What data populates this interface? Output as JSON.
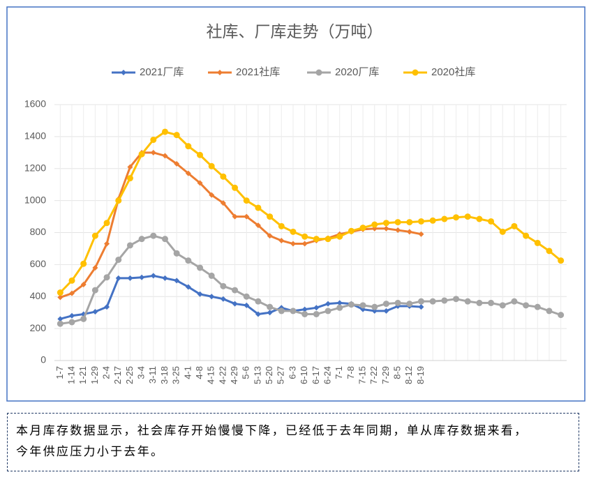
{
  "chart_data": {
    "type": "line",
    "title": "社库、厂库走势（万吨）",
    "categories": [
      "1-7",
      "1-14",
      "1-21",
      "1-29",
      "2-4",
      "2-17",
      "2-25",
      "3-4",
      "3-11",
      "3-18",
      "3-25",
      "4-1",
      "4-8",
      "4-15",
      "4-22",
      "4-29",
      "5-6",
      "5-13",
      "5-20",
      "5-27",
      "6-3",
      "6-10",
      "6-17",
      "6-24",
      "7-1",
      "7-8",
      "7-15",
      "7-22",
      "7-29",
      "8-5",
      "8-12",
      "8-19",
      null,
      null,
      null,
      null,
      null,
      null,
      null,
      null,
      null,
      null,
      null,
      null
    ],
    "series": [
      {
        "name": "2021厂库",
        "color": "#4472c4",
        "marker": "diamond",
        "values": [
          260,
          280,
          290,
          305,
          335,
          515,
          515,
          520,
          530,
          515,
          500,
          460,
          415,
          400,
          385,
          355,
          345,
          290,
          300,
          330,
          310,
          320,
          330,
          355,
          360,
          355,
          320,
          310,
          310,
          340,
          340,
          335,
          null,
          null,
          null,
          null,
          null,
          null,
          null,
          null,
          null,
          null,
          null,
          null
        ]
      },
      {
        "name": "2021社库",
        "color": "#ed7d31",
        "marker": "diamond",
        "values": [
          395,
          420,
          475,
          580,
          730,
          1010,
          1210,
          1300,
          1300,
          1280,
          1230,
          1170,
          1110,
          1035,
          985,
          900,
          900,
          845,
          780,
          750,
          730,
          730,
          750,
          765,
          790,
          805,
          820,
          825,
          825,
          815,
          805,
          790,
          null,
          null,
          null,
          null,
          null,
          null,
          null,
          null,
          null,
          null,
          null,
          null
        ]
      },
      {
        "name": "2020厂库",
        "color": "#a5a5a5",
        "marker": "circle",
        "values": [
          230,
          240,
          260,
          440,
          520,
          630,
          720,
          760,
          780,
          760,
          670,
          625,
          580,
          530,
          465,
          440,
          400,
          370,
          335,
          310,
          310,
          290,
          290,
          310,
          330,
          350,
          345,
          335,
          355,
          360,
          355,
          370,
          370,
          375,
          385,
          370,
          360,
          360,
          345,
          370,
          345,
          335,
          310,
          285
        ]
      },
      {
        "name": "2020社库",
        "color": "#ffc000",
        "marker": "circle",
        "values": [
          425,
          500,
          605,
          780,
          860,
          1000,
          1140,
          1290,
          1380,
          1430,
          1410,
          1340,
          1285,
          1215,
          1150,
          1080,
          1000,
          955,
          900,
          840,
          805,
          775,
          760,
          760,
          775,
          810,
          830,
          850,
          860,
          865,
          865,
          870,
          875,
          885,
          895,
          900,
          885,
          870,
          805,
          840,
          780,
          735,
          685,
          625
        ]
      }
    ],
    "ylim": [
      0,
      1600
    ],
    "yticks": [
      0,
      200,
      400,
      600,
      800,
      1000,
      1200,
      1400,
      1600
    ],
    "grid": true,
    "legend": "top"
  },
  "note": {
    "lines": [
      "本月库存数据显示，社会库存开始慢慢下降，已经低于去年同期，单从库存数据来看，",
      "今年供应压力小于去年。"
    ]
  }
}
